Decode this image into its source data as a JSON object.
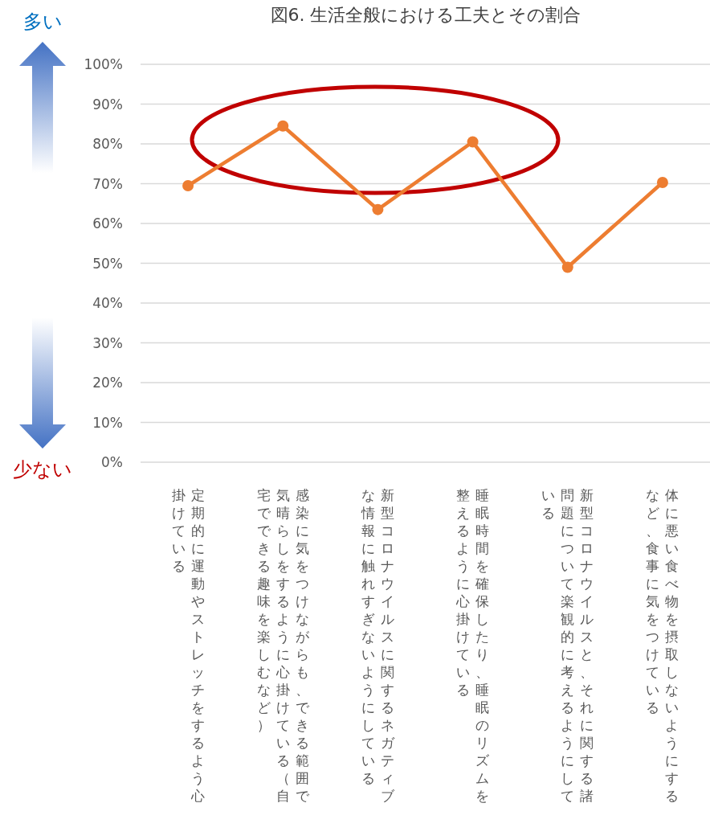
{
  "chart_data": {
    "type": "line",
    "title": "図6. 生活全般における工夫とその割合",
    "categories": [
      "定期的に運動やストレッチをするよう心掛けている",
      "感染に気をつけながらも、できる範囲で気晴らしをするように心掛けている（自宅でできる趣味を楽しむなど）",
      "新型コロナウイルスに関するネガティブな情報に触れすぎないようにしている",
      "睡眠時間を確保したり、睡眠のリズムを整えるように心掛けている",
      "新型コロナウイルスと、それに関する諸問題について楽観的に考えるようにしている",
      "体に悪い食べ物を摂取しないようにするなど、食事に気をつけている"
    ],
    "series": [
      {
        "color": "#ed7d31",
        "values": [
          69.5,
          84.5,
          63.5,
          80.5,
          49,
          70.3
        ]
      }
    ],
    "ylim": [
      0,
      100
    ],
    "yticks": [
      {
        "value": 0,
        "label": "0%"
      },
      {
        "value": 10,
        "label": "10%"
      },
      {
        "value": 20,
        "label": "20%"
      },
      {
        "value": 30,
        "label": "30%"
      },
      {
        "value": 40,
        "label": "40%"
      },
      {
        "value": 50,
        "label": "50%"
      },
      {
        "value": 60,
        "label": "60%"
      },
      {
        "value": 70,
        "label": "70%"
      },
      {
        "value": 80,
        "label": "80%"
      },
      {
        "value": 90,
        "label": "90%"
      },
      {
        "value": 100,
        "label": "100%"
      }
    ],
    "grid": "y",
    "marker": "circle",
    "line_style": "solid",
    "annotations": [
      "多い",
      "少ない"
    ]
  }
}
